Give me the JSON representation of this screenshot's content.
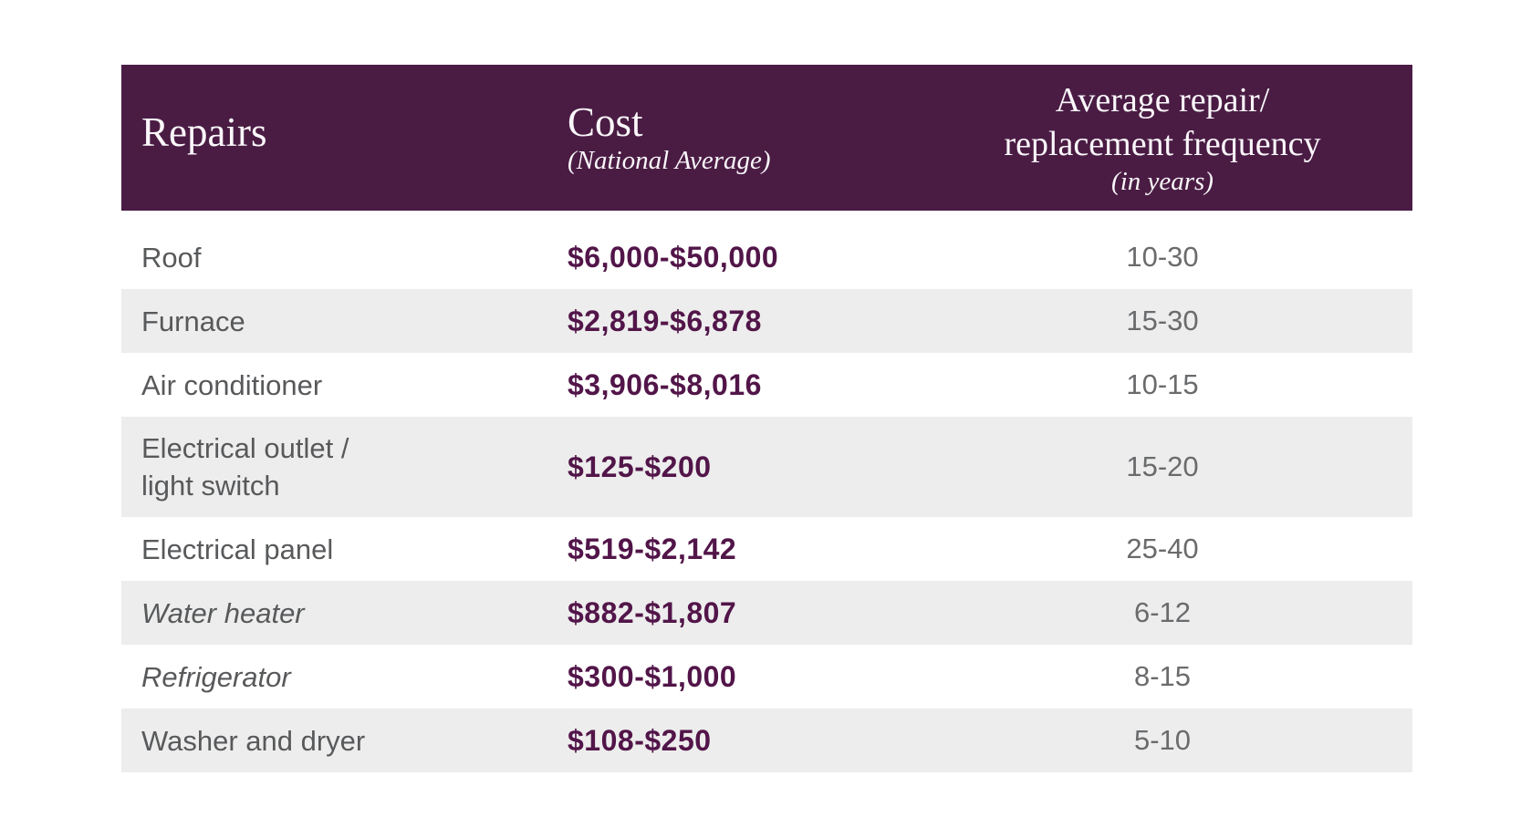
{
  "colors": {
    "header_bg": "#4a1c44",
    "cost_text": "#521549",
    "row_alt": "#ededed",
    "label_text": "#58595b",
    "freq_text": "#6a6b6d"
  },
  "header": {
    "repairs": "Repairs",
    "cost_title": "Cost",
    "cost_subtitle": "(National Average)",
    "freq_line1": "Average repair/",
    "freq_line2": "replacement frequency",
    "freq_subtitle": "(in years)"
  },
  "rows": [
    {
      "repair": "Roof",
      "cost": "$6,000-$50,000",
      "frequency": "10-30",
      "italic": false
    },
    {
      "repair": "Furnace",
      "cost": "$2,819-$6,878",
      "frequency": "15-30",
      "italic": false
    },
    {
      "repair": "Air conditioner",
      "cost": "$3,906-$8,016",
      "frequency": "10-15",
      "italic": false
    },
    {
      "repair": "Electrical outlet /\nlight switch",
      "cost": "$125-$200",
      "frequency": "15-20",
      "italic": false
    },
    {
      "repair": "Electrical panel",
      "cost": "$519-$2,142",
      "frequency": "25-40",
      "italic": false
    },
    {
      "repair": "Water heater",
      "cost": "$882-$1,807",
      "frequency": "6-12",
      "italic": true
    },
    {
      "repair": "Refrigerator",
      "cost": "$300-$1,000",
      "frequency": "8-15",
      "italic": true
    },
    {
      "repair": "Washer and dryer",
      "cost": "$108-$250",
      "frequency": "5-10",
      "italic": false
    }
  ],
  "chart_data": {
    "type": "table",
    "columns": [
      "Repairs",
      "Cost (National Average)",
      "Average repair/replacement frequency (in years)"
    ],
    "rows": [
      [
        "Roof",
        "$6,000-$50,000",
        "10-30"
      ],
      [
        "Furnace",
        "$2,819-$6,878",
        "15-30"
      ],
      [
        "Air conditioner",
        "$3,906-$8,016",
        "10-15"
      ],
      [
        "Electrical outlet / light switch",
        "$125-$200",
        "15-20"
      ],
      [
        "Electrical panel",
        "$519-$2,142",
        "25-40"
      ],
      [
        "Water heater",
        "$882-$1,807",
        "6-12"
      ],
      [
        "Refrigerator",
        "$300-$1,000",
        "8-15"
      ],
      [
        "Washer and dryer",
        "$108-$250",
        "5-10"
      ]
    ]
  }
}
